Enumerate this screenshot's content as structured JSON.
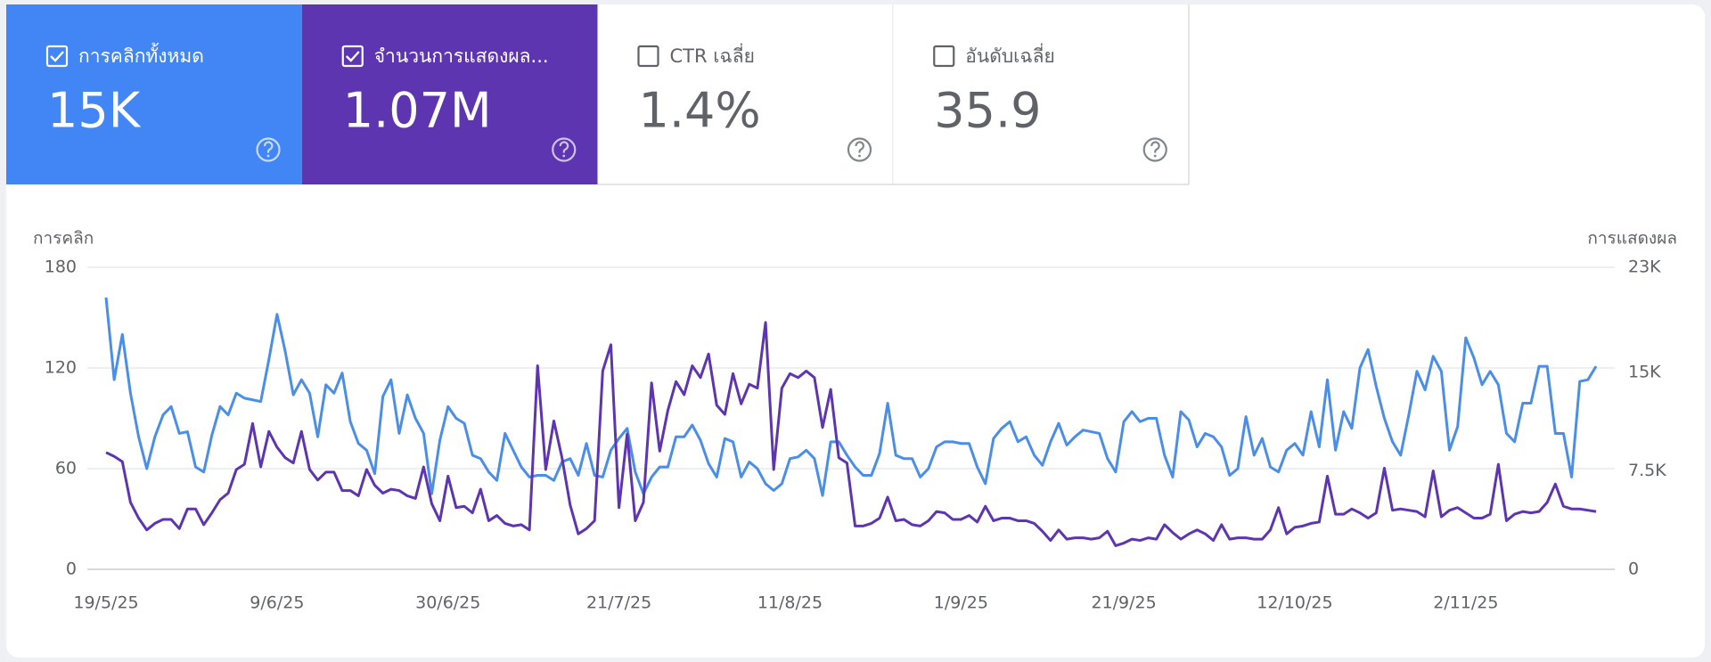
{
  "cards": [
    {
      "label": "การคลิกทั้งหมด",
      "value": "15K",
      "checked": true,
      "color": "#4285f4"
    },
    {
      "label": "จำนวนการแสดงผล...",
      "value": "1.07M",
      "checked": true,
      "color": "#5e35b1"
    },
    {
      "label": "CTR เฉลี่ย",
      "value": "1.4%",
      "checked": false,
      "color": "#ffffff"
    },
    {
      "label": "อันดับเฉลี่ย",
      "value": "35.9",
      "checked": false,
      "color": "#ffffff"
    }
  ],
  "chart_data": {
    "type": "line",
    "y_label": "การคลิก",
    "y2_label": "การแสดงผล",
    "categories": [
      "19/5/25",
      null,
      null,
      null,
      null,
      null,
      null,
      null,
      null,
      null,
      null,
      null,
      null,
      null,
      null,
      null,
      null,
      null,
      null,
      null,
      null,
      "9/6/25",
      null,
      null,
      null,
      null,
      null,
      null,
      null,
      null,
      null,
      null,
      null,
      null,
      null,
      null,
      null,
      null,
      null,
      null,
      null,
      null,
      "30/6/25",
      null,
      null,
      null,
      null,
      null,
      null,
      null,
      null,
      null,
      null,
      null,
      null,
      null,
      null,
      null,
      null,
      null,
      null,
      null,
      null,
      "21/7/25",
      null,
      null,
      null,
      null,
      null,
      null,
      null,
      null,
      null,
      null,
      null,
      null,
      null,
      null,
      null,
      null,
      null,
      null,
      null,
      null,
      "11/8/25",
      null,
      null,
      null,
      null,
      null,
      null,
      null,
      null,
      null,
      null,
      null,
      null,
      null,
      null,
      null,
      null,
      null,
      null,
      null,
      null,
      "1/9/25",
      null,
      null,
      null,
      null,
      null,
      null,
      null,
      null,
      null,
      null,
      null,
      null,
      null,
      null,
      null,
      null,
      null,
      null,
      null,
      "21/9/25",
      null,
      null,
      null,
      null,
      null,
      null,
      null,
      null,
      null,
      null,
      null,
      null,
      null,
      null,
      null,
      null,
      null,
      null,
      null,
      null,
      "12/10/25",
      null,
      null,
      null,
      null,
      null,
      null,
      null,
      null,
      null,
      null,
      null,
      null,
      null,
      null,
      null,
      null,
      null,
      null,
      null,
      null,
      "2/11/25",
      null,
      null,
      null,
      null,
      null,
      null,
      null,
      null,
      null,
      null,
      null,
      null,
      null,
      null,
      null,
      null
    ],
    "series": [
      {
        "color": "#4a8ee8",
        "axis": "y",
        "values": [
          162,
          113,
          140,
          105,
          79,
          60,
          79,
          92,
          97,
          81,
          82,
          61,
          58,
          80,
          97,
          92,
          105,
          102,
          101,
          100,
          125,
          152,
          130,
          104,
          113,
          105,
          79,
          110,
          105,
          117,
          88,
          75,
          71,
          57,
          103,
          113,
          81,
          104,
          90,
          81,
          45,
          77,
          97,
          90,
          87,
          68,
          66,
          58,
          53,
          81,
          71,
          61,
          55,
          56,
          56,
          53,
          64,
          66,
          56,
          75,
          56,
          55,
          71,
          78,
          84,
          58,
          45,
          55,
          61,
          61,
          79,
          79,
          86,
          77,
          63,
          55,
          78,
          76,
          55,
          64,
          60,
          51,
          47,
          51,
          66,
          67,
          71,
          66,
          44,
          76,
          76,
          68,
          61,
          56,
          56,
          69,
          99,
          68,
          66,
          66,
          55,
          60,
          73,
          76,
          76,
          75,
          75,
          61,
          51,
          78,
          84,
          88,
          76,
          79,
          68,
          62,
          76,
          87,
          74,
          79,
          83,
          82,
          81,
          66,
          58,
          88,
          94,
          88,
          90,
          90,
          68,
          55,
          94,
          89,
          73,
          81,
          79,
          73,
          56,
          60,
          91,
          68,
          78,
          61,
          58,
          71,
          75,
          68,
          94,
          73,
          113,
          71,
          94,
          84,
          120,
          131,
          109,
          90,
          76,
          68,
          92,
          118,
          107,
          127,
          118,
          71,
          85,
          138,
          126,
          110,
          118,
          110,
          81,
          76,
          99,
          99,
          121,
          121,
          81,
          81,
          55,
          112,
          113,
          121
        ]
      },
      {
        "color": "#5e35b1",
        "axis": "y2",
        "values": [
          8900,
          8600,
          8200,
          5100,
          3900,
          3000,
          3500,
          3800,
          3800,
          3100,
          4600,
          4600,
          3400,
          4300,
          5300,
          5800,
          7600,
          8000,
          11100,
          7800,
          10500,
          9300,
          8500,
          8100,
          10500,
          7600,
          6800,
          7400,
          7400,
          6000,
          6000,
          5600,
          7600,
          6400,
          5800,
          6100,
          6000,
          5600,
          5400,
          7800,
          5000,
          3700,
          7100,
          4700,
          4800,
          4300,
          6100,
          3700,
          4100,
          3500,
          3300,
          3400,
          3000,
          15500,
          7600,
          11300,
          8500,
          4900,
          2700,
          3100,
          3700,
          15100,
          17100,
          4700,
          10300,
          3700,
          5100,
          14200,
          9000,
          12100,
          14300,
          13300,
          15500,
          14600,
          16400,
          12500,
          11800,
          14900,
          12600,
          14100,
          13800,
          18800,
          7600,
          13800,
          14900,
          14600,
          15100,
          14600,
          10800,
          13700,
          8500,
          8100,
          3300,
          3300,
          3500,
          3900,
          5500,
          3700,
          3800,
          3400,
          3300,
          3700,
          4400,
          4300,
          3800,
          3800,
          4100,
          3600,
          4800,
          3700,
          3900,
          3900,
          3700,
          3700,
          3500,
          2900,
          2200,
          3000,
          2300,
          2400,
          2400,
          2300,
          2400,
          2900,
          1800,
          2000,
          2300,
          2200,
          2400,
          2300,
          3400,
          2800,
          2300,
          2700,
          3000,
          2700,
          2200,
          3400,
          2300,
          2400,
          2400,
          2300,
          2300,
          3000,
          4700,
          2700,
          3200,
          3300,
          3500,
          3600,
          7100,
          4200,
          4200,
          4600,
          4300,
          3900,
          4300,
          7700,
          4500,
          4600,
          4500,
          4400,
          4000,
          7500,
          4000,
          4500,
          4700,
          4300,
          3900,
          3900,
          4200,
          8000,
          3700,
          4200,
          4400,
          4300,
          4400,
          5100,
          6500,
          4800,
          4600,
          4600,
          4500,
          4400
        ]
      }
    ],
    "ylim": [
      0,
      180
    ],
    "yticks": [
      0,
      60,
      120,
      180
    ],
    "y2lim": [
      0,
      23000
    ],
    "y2ticks": [
      0,
      {
        "value": 7500,
        "label": "7.5K"
      },
      {
        "value": 15000,
        "label": "15K"
      },
      {
        "value": 23000,
        "label": "23K"
      }
    ],
    "grid": true
  }
}
